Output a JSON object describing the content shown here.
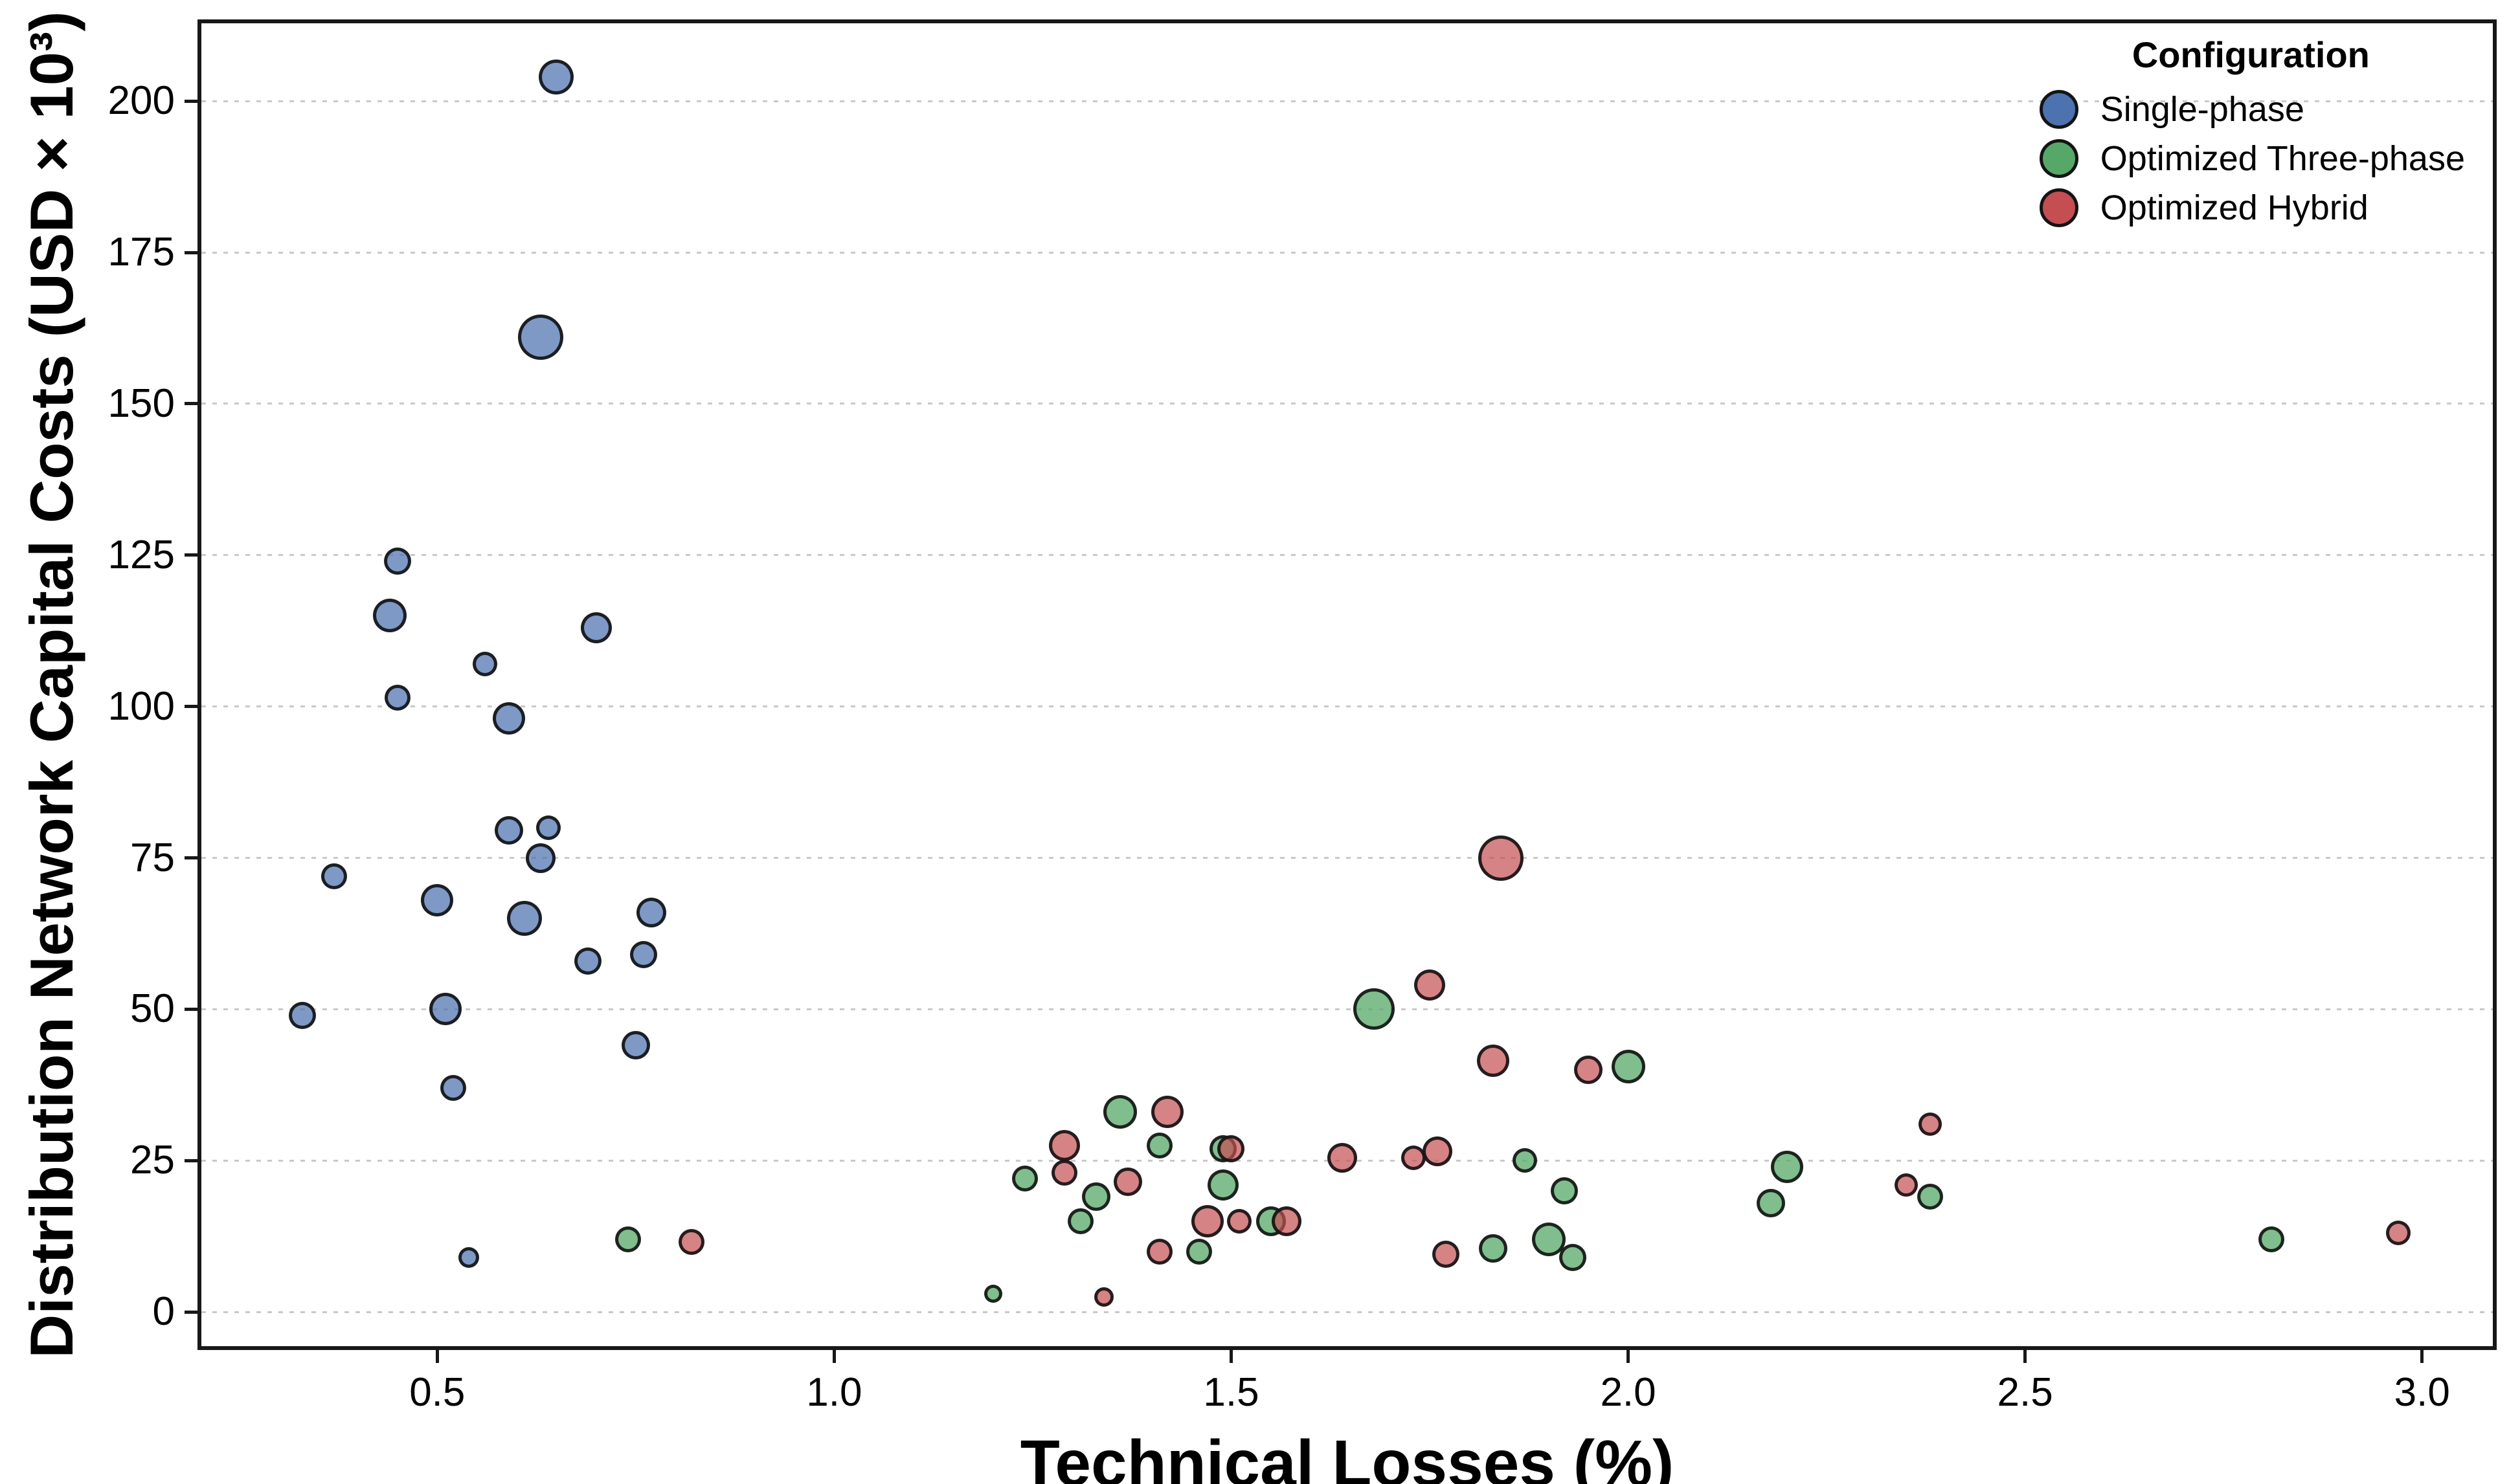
{
  "chart_data": {
    "type": "scatter",
    "title": "",
    "xlabel": "Technical Losses (%)",
    "ylabel": "Distribution Network Capital Costs (USD × 10³)",
    "xlim": [
      0.198,
      3.094
    ],
    "ylim": [
      -6.3,
      213.5
    ],
    "x_ticks": [
      0.5,
      1.0,
      1.5,
      2.0,
      2.5,
      3.0
    ],
    "x_tick_labels": [
      "0.5",
      "1.0",
      "1.5",
      "2.0",
      "2.5",
      "3.0"
    ],
    "y_ticks": [
      0,
      25,
      50,
      75,
      100,
      125,
      150,
      175,
      200
    ],
    "y_tick_labels": [
      "0",
      "25",
      "50",
      "75",
      "100",
      "125",
      "150",
      "175",
      "200"
    ],
    "grid": "horizontal dotted gridlines at y ticks",
    "legend": {
      "title": "Configuration",
      "position": "upper right"
    },
    "edge_color": "rgba(15,15,15,0.88)",
    "series": [
      {
        "name": "Single-phase",
        "legend_color": "#4C72B0",
        "fill": "rgba(76,114,176,0.72)",
        "points": [
          [
            0.65,
            204,
            22
          ],
          [
            0.63,
            161,
            30
          ],
          [
            0.45,
            124,
            16
          ],
          [
            0.44,
            115,
            21
          ],
          [
            0.7,
            113,
            19
          ],
          [
            0.56,
            107,
            14
          ],
          [
            0.45,
            101.5,
            15
          ],
          [
            0.59,
            98,
            20
          ],
          [
            0.64,
            80,
            14
          ],
          [
            0.59,
            79.5,
            17
          ],
          [
            0.63,
            75,
            18
          ],
          [
            0.37,
            72,
            15
          ],
          [
            0.5,
            68,
            20
          ],
          [
            0.77,
            66,
            18
          ],
          [
            0.61,
            65,
            22
          ],
          [
            0.76,
            59,
            16
          ],
          [
            0.69,
            58,
            16
          ],
          [
            0.51,
            50,
            20
          ],
          [
            0.33,
            49,
            16
          ],
          [
            0.75,
            44,
            17
          ],
          [
            0.52,
            37,
            15
          ],
          [
            0.54,
            9,
            11
          ]
        ]
      },
      {
        "name": "Optimized Three-phase",
        "legend_color": "#55A868",
        "fill": "rgba(85,168,104,0.75)",
        "points": [
          [
            0.74,
            12,
            15
          ],
          [
            1.2,
            3,
            9
          ],
          [
            1.24,
            22,
            15
          ],
          [
            1.31,
            15,
            15
          ],
          [
            1.33,
            19,
            17
          ],
          [
            1.36,
            33,
            21
          ],
          [
            1.41,
            27.5,
            15
          ],
          [
            1.46,
            10,
            15
          ],
          [
            1.49,
            27,
            16
          ],
          [
            1.49,
            21,
            19
          ],
          [
            1.55,
            15,
            18
          ],
          [
            1.68,
            50,
            27
          ],
          [
            1.83,
            10.5,
            17
          ],
          [
            1.87,
            25,
            14
          ],
          [
            1.9,
            12,
            21
          ],
          [
            1.92,
            20,
            16
          ],
          [
            1.93,
            9,
            16
          ],
          [
            2.0,
            40.5,
            21
          ],
          [
            2.18,
            18,
            17
          ],
          [
            2.2,
            24,
            20
          ],
          [
            2.38,
            19,
            15
          ],
          [
            2.81,
            12,
            15
          ]
        ]
      },
      {
        "name": "Optimized Hybrid",
        "legend_color": "#C44E52",
        "fill": "rgba(196,78,82,0.70)",
        "points": [
          [
            0.82,
            11.5,
            15
          ],
          [
            1.29,
            27.5,
            19
          ],
          [
            1.29,
            23,
            15
          ],
          [
            1.34,
            2.5,
            10
          ],
          [
            1.37,
            21.5,
            17
          ],
          [
            1.41,
            10,
            15
          ],
          [
            1.42,
            33,
            20
          ],
          [
            1.47,
            15,
            20
          ],
          [
            1.5,
            27,
            16
          ],
          [
            1.51,
            15,
            14
          ],
          [
            1.57,
            15,
            18
          ],
          [
            1.64,
            25.5,
            18
          ],
          [
            1.73,
            25.5,
            14
          ],
          [
            1.75,
            54,
            19
          ],
          [
            1.76,
            26.5,
            18
          ],
          [
            1.77,
            9.5,
            16
          ],
          [
            1.83,
            41.5,
            20
          ],
          [
            1.84,
            75,
            30
          ],
          [
            1.95,
            40,
            17
          ],
          [
            2.35,
            21,
            13
          ],
          [
            2.38,
            31,
            13
          ],
          [
            2.97,
            13,
            14
          ]
        ]
      }
    ]
  }
}
